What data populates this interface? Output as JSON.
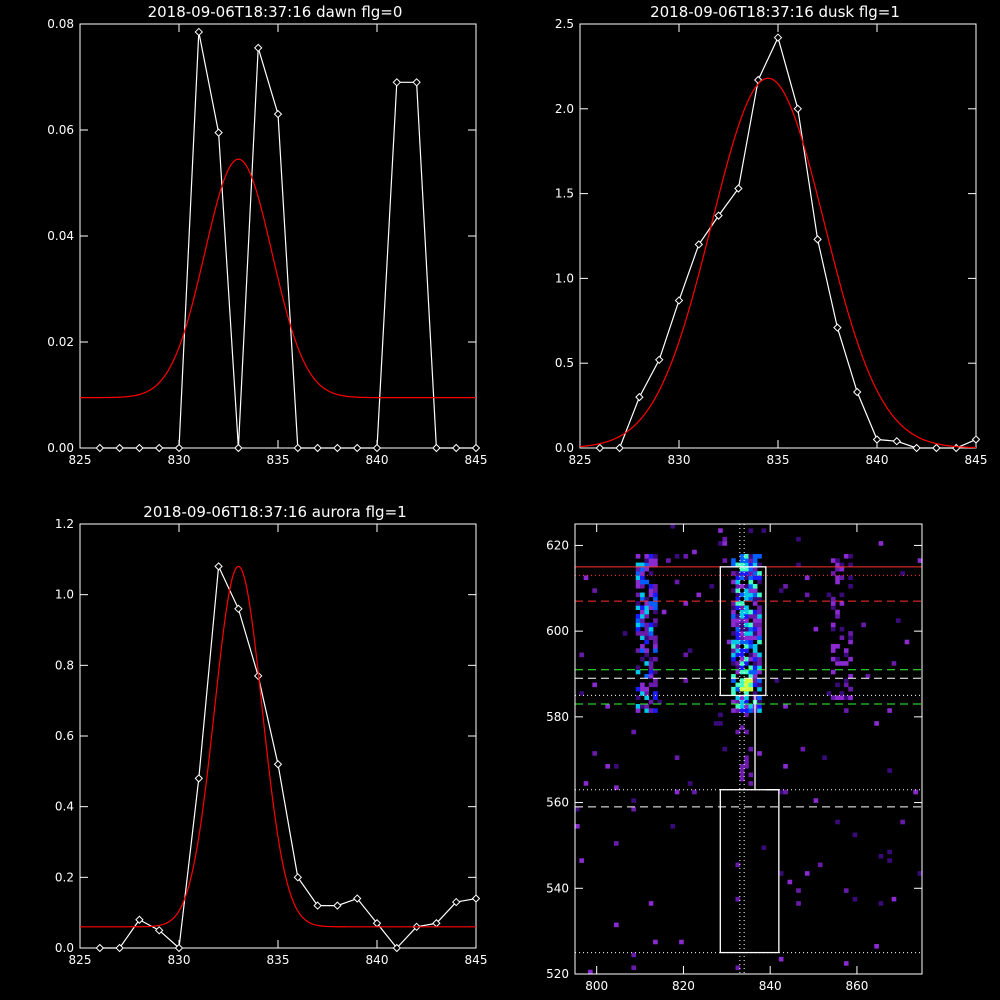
{
  "chart_data": [
    {
      "type": "line",
      "title": "2018-09-06T18:37:16 dawn flg=0",
      "xlim": [
        825,
        845
      ],
      "ylim": [
        0,
        0.08
      ],
      "xticks": [
        "825",
        "830",
        "835",
        "840",
        "845"
      ],
      "yticks": [
        "0.00",
        "0.02",
        "0.04",
        "0.06",
        "0.08"
      ],
      "series": [
        {
          "style": "data",
          "color": "#ffffff",
          "x": [
            826,
            827,
            828,
            829,
            830,
            831,
            832,
            833,
            834,
            835,
            836,
            837,
            838,
            839,
            840,
            841,
            842,
            843,
            844,
            845
          ],
          "y": [
            0,
            0,
            0,
            0,
            0,
            0.0785,
            0.0595,
            0,
            0.0755,
            0.063,
            0,
            0,
            0,
            0,
            0,
            0.069,
            0.069,
            0,
            0,
            0
          ]
        },
        {
          "style": "gaussian",
          "color": "#ff0000",
          "peak": 0.0545,
          "center": 833,
          "sigma": 1.7,
          "base": 0.0095
        }
      ]
    },
    {
      "type": "line",
      "title": "2018-09-06T18:37:16 dusk flg=1",
      "xlim": [
        825,
        845
      ],
      "ylim": [
        0,
        2.5
      ],
      "xticks": [
        "825",
        "830",
        "835",
        "840",
        "845"
      ],
      "yticks": [
        "0.0",
        "0.5",
        "1.0",
        "1.5",
        "2.0",
        "2.5"
      ],
      "series": [
        {
          "style": "data",
          "color": "#ffffff",
          "x": [
            826,
            827,
            828,
            829,
            830,
            831,
            832,
            833,
            834,
            835,
            836,
            837,
            838,
            839,
            840,
            841,
            842,
            843,
            844,
            845
          ],
          "y": [
            0,
            0,
            0.3,
            0.52,
            0.87,
            1.2,
            1.37,
            1.53,
            2.17,
            2.42,
            2.0,
            1.23,
            0.71,
            0.33,
            0.05,
            0.04,
            0,
            0,
            0,
            0.05
          ]
        },
        {
          "style": "gaussian",
          "color": "#ff0000",
          "peak": 2.18,
          "center": 834.5,
          "sigma": 2.85,
          "base": 0
        }
      ]
    },
    {
      "type": "line",
      "title": "2018-09-06T18:37:16 aurora flg=1",
      "xlim": [
        825,
        845
      ],
      "ylim": [
        0,
        1.2
      ],
      "xticks": [
        "825",
        "830",
        "835",
        "840",
        "845"
      ],
      "yticks": [
        "0.0",
        "0.2",
        "0.4",
        "0.6",
        "0.8",
        "1.0",
        "1.2"
      ],
      "series": [
        {
          "style": "data",
          "color": "#ffffff",
          "x": [
            826,
            827,
            828,
            829,
            830,
            831,
            832,
            833,
            834,
            835,
            836,
            837,
            838,
            839,
            840,
            841,
            842,
            843,
            844,
            845
          ],
          "y": [
            0,
            0,
            0.08,
            0.05,
            0,
            0.48,
            1.08,
            0.96,
            0.77,
            0.52,
            0.2,
            0.12,
            0.12,
            0.14,
            0.07,
            0,
            0.06,
            0.07,
            0.13,
            0.14
          ]
        },
        {
          "style": "gaussian",
          "color": "#ff0000",
          "peak": 1.08,
          "center": 833,
          "sigma": 1.2,
          "base": 0.06
        }
      ]
    },
    {
      "type": "heatmap",
      "title": "",
      "xlim": [
        795,
        875
      ],
      "ylim": [
        520,
        625
      ],
      "xticks": [
        "800",
        "820",
        "840",
        "860"
      ],
      "yticks": [
        "520",
        "540",
        "560",
        "580",
        "600",
        "620"
      ],
      "emission_columns_x": [
        811,
        834,
        856
      ],
      "boxes": [
        {
          "x": [
            828.5,
            839
          ],
          "y": [
            585,
            615
          ]
        },
        {
          "x": [
            828.5,
            842
          ],
          "y": [
            525,
            563
          ]
        }
      ],
      "hlines": [
        {
          "y": 615,
          "style": "solid",
          "color": "#ff3030"
        },
        {
          "y": 613,
          "style": "dotted",
          "color": "#ff3030"
        },
        {
          "y": 607,
          "style": "dashed",
          "color": "#ff3030"
        },
        {
          "y": 591,
          "style": "dashed",
          "color": "#30ff30"
        },
        {
          "y": 583,
          "style": "dashed",
          "color": "#30ff30"
        },
        {
          "y": 589,
          "style": "dashed",
          "color": "#ffffff"
        },
        {
          "y": 585,
          "style": "dotted",
          "color": "#ffffff"
        },
        {
          "y": 563,
          "style": "dotted",
          "color": "#ffffff"
        },
        {
          "y": 559,
          "style": "dashed",
          "color": "#ffffff"
        },
        {
          "y": 525,
          "style": "dotted",
          "color": "#ffffff"
        }
      ],
      "vlines": [
        {
          "x": 833,
          "style": "dotted",
          "color": "#ffffff"
        },
        {
          "x": 834,
          "style": "dotted",
          "color": "#ffffff"
        }
      ],
      "colors": [
        "#3a0a7a",
        "#6a1aaa",
        "#8a2ad0",
        "#1a1aff",
        "#0060ff",
        "#00c8e8",
        "#40ffc0",
        "#d0ff40"
      ]
    }
  ]
}
